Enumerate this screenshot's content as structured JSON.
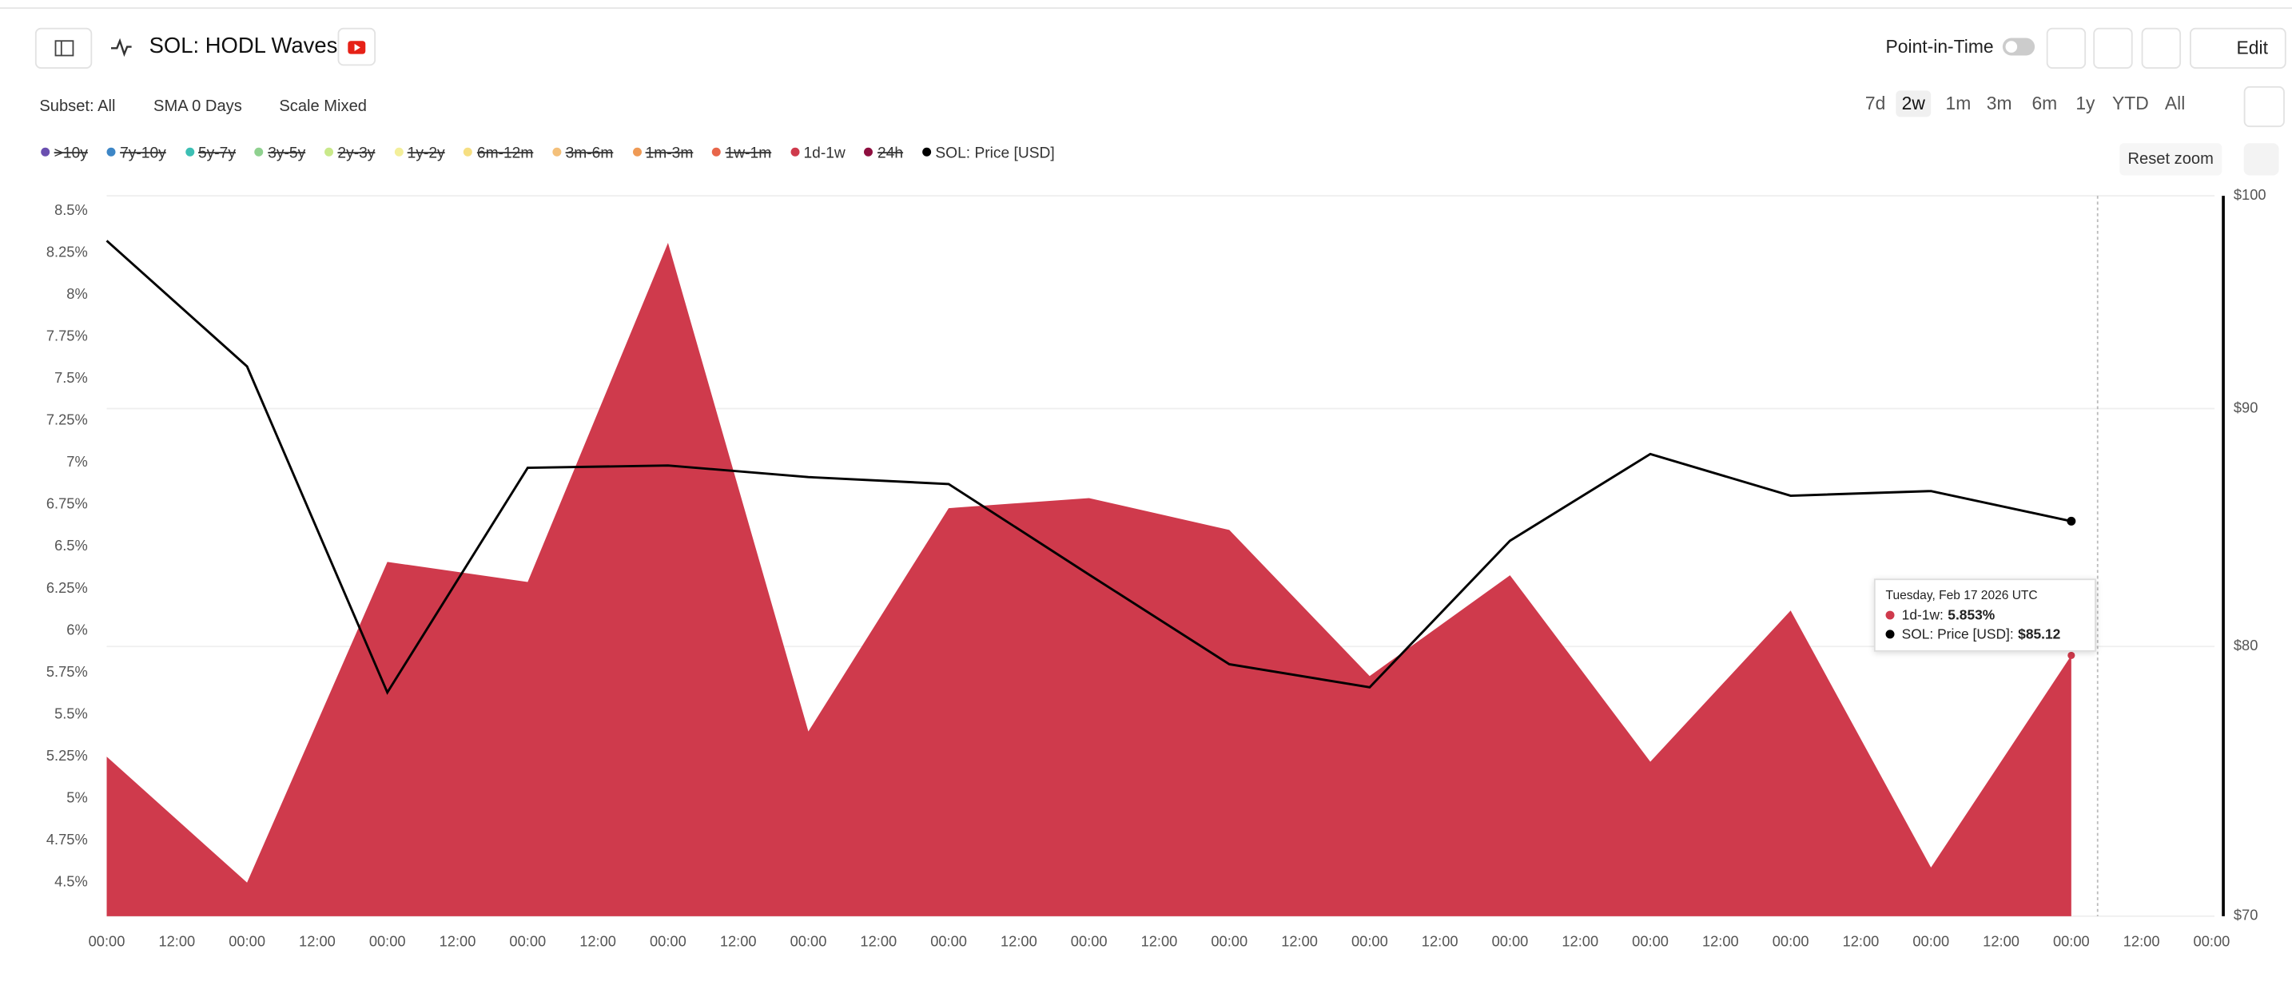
{
  "header": {
    "title": "SOL: HODL Waves",
    "point_in_time": "Point-in-Time",
    "edit": "Edit"
  },
  "toolbar": {
    "filters": [
      "Subset: All",
      "SMA 0 Days",
      "Scale Mixed"
    ],
    "ranges": [
      "7d",
      "2w",
      "1m",
      "3m",
      "6m",
      "1y",
      "YTD",
      "All"
    ],
    "active_range": "2w",
    "reset_zoom": "Reset zoom"
  },
  "chart_data": {
    "type": "area-line",
    "legend_items": [
      {
        "name": ">10y",
        "color": "#6a4fb0",
        "hidden": true
      },
      {
        "name": "7y-10y",
        "color": "#3d86c6",
        "hidden": true
      },
      {
        "name": "5y-7y",
        "color": "#3cbfb4",
        "hidden": true
      },
      {
        "name": "3y-5y",
        "color": "#8fd18f",
        "hidden": true
      },
      {
        "name": "2y-3y",
        "color": "#c9e98a",
        "hidden": true
      },
      {
        "name": "1y-2y",
        "color": "#f3ef9a",
        "hidden": true
      },
      {
        "name": "6m-12m",
        "color": "#f6df82",
        "hidden": true
      },
      {
        "name": "3m-6m",
        "color": "#f4c07a",
        "hidden": true
      },
      {
        "name": "1m-3m",
        "color": "#ef9a55",
        "hidden": true
      },
      {
        "name": "1w-1m",
        "color": "#e8664a",
        "hidden": true
      },
      {
        "name": "1d-1w",
        "color": "#cf3a4c",
        "hidden": false
      },
      {
        "name": "24h",
        "color": "#8e0f3f",
        "hidden": true
      },
      {
        "name": "SOL: Price [USD]",
        "color": "#000000",
        "hidden": false
      }
    ],
    "x": [
      0,
      24,
      48,
      72,
      96,
      120,
      144,
      168,
      192,
      216,
      240,
      264,
      288,
      312,
      336
    ],
    "series": [
      {
        "name": "1d-1w",
        "color": "#cf3a4c",
        "kind": "area",
        "values": [
          5.25,
          4.5,
          6.41,
          6.29,
          8.31,
          5.4,
          6.73,
          6.79,
          6.6,
          5.73,
          6.33,
          5.22,
          6.12,
          4.59,
          5.853
        ]
      },
      {
        "name": "SOL: Price [USD]",
        "color": "#000000",
        "kind": "line",
        "axis": "y2",
        "values": [
          97.8,
          91.9,
          78.2,
          87.4,
          87.5,
          87.0,
          86.7,
          82.9,
          79.3,
          78.4,
          84.3,
          88.0,
          86.2,
          86.4,
          85.12
        ]
      }
    ],
    "xlim": [
      0,
      360
    ],
    "xticks": [
      {
        "value": 0,
        "label": "00:00"
      },
      {
        "value": 12,
        "label": "12:00"
      },
      {
        "value": 24,
        "label": "00:00"
      },
      {
        "value": 36,
        "label": "12:00"
      },
      {
        "value": 48,
        "label": "00:00"
      },
      {
        "value": 60,
        "label": "12:00"
      },
      {
        "value": 72,
        "label": "00:00"
      },
      {
        "value": 84,
        "label": "12:00"
      },
      {
        "value": 96,
        "label": "00:00"
      },
      {
        "value": 108,
        "label": "12:00"
      },
      {
        "value": 120,
        "label": "00:00"
      },
      {
        "value": 132,
        "label": "12:00"
      },
      {
        "value": 144,
        "label": "00:00"
      },
      {
        "value": 156,
        "label": "12:00"
      },
      {
        "value": 168,
        "label": "00:00"
      },
      {
        "value": 180,
        "label": "12:00"
      },
      {
        "value": 192,
        "label": "00:00"
      },
      {
        "value": 204,
        "label": "12:00"
      },
      {
        "value": 216,
        "label": "00:00"
      },
      {
        "value": 228,
        "label": "12:00"
      },
      {
        "value": 240,
        "label": "00:00"
      },
      {
        "value": 252,
        "label": "12:00"
      },
      {
        "value": 264,
        "label": "00:00"
      },
      {
        "value": 276,
        "label": "12:00"
      },
      {
        "value": 288,
        "label": "00:00"
      },
      {
        "value": 300,
        "label": "12:00"
      },
      {
        "value": 312,
        "label": "00:00"
      },
      {
        "value": 324,
        "label": "12:00"
      },
      {
        "value": 336,
        "label": "00:00"
      },
      {
        "value": 348,
        "label": "12:00"
      },
      {
        "value": 360,
        "label": "00:00"
      }
    ],
    "ylim": [
      4.3,
      8.59
    ],
    "yticks": [
      {
        "value": 4.5,
        "label": "4.5%"
      },
      {
        "value": 4.75,
        "label": "4.75%"
      },
      {
        "value": 5,
        "label": "5%"
      },
      {
        "value": 5.25,
        "label": "5.25%"
      },
      {
        "value": 5.5,
        "label": "5.5%"
      },
      {
        "value": 5.75,
        "label": "5.75%"
      },
      {
        "value": 6,
        "label": "6%"
      },
      {
        "value": 6.25,
        "label": "6.25%"
      },
      {
        "value": 6.5,
        "label": "6.5%"
      },
      {
        "value": 6.75,
        "label": "6.75%"
      },
      {
        "value": 7,
        "label": "7%"
      },
      {
        "value": 7.25,
        "label": "7.25%"
      },
      {
        "value": 7.5,
        "label": "7.5%"
      },
      {
        "value": 7.75,
        "label": "7.75%"
      },
      {
        "value": 8,
        "label": "8%"
      },
      {
        "value": 8.25,
        "label": "8.25%"
      },
      {
        "value": 8.5,
        "label": "8.5%"
      }
    ],
    "y2lim": [
      70,
      100
    ],
    "y2log": true,
    "y2ticks": [
      {
        "value": 70,
        "label": "$70"
      },
      {
        "value": 80,
        "label": "$80"
      },
      {
        "value": 90,
        "label": "$90"
      },
      {
        "value": 100,
        "label": "$100"
      }
    ],
    "tooltip": {
      "date": "Tuesday, Feb 17 2026 UTC",
      "items": [
        {
          "label": "1d-1w:",
          "value": "5.853%",
          "color": "#cf3a4c"
        },
        {
          "label": "SOL: Price [USD]:",
          "value": "$85.12",
          "color": "#000000"
        }
      ]
    }
  }
}
